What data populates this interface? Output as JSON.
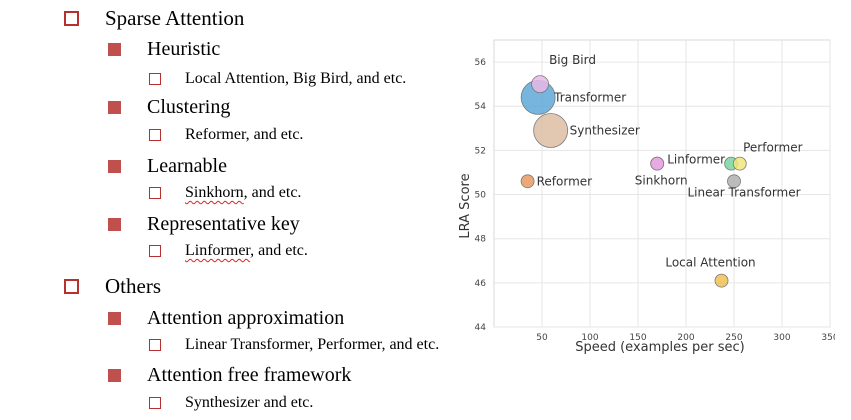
{
  "outline": [
    {
      "level": 1,
      "text": "Sparse Attention"
    },
    {
      "level": 2,
      "text": "Heuristic"
    },
    {
      "level": 3,
      "text": "Local Attention, Big Bird, and etc."
    },
    {
      "level": 2,
      "text": "Clustering"
    },
    {
      "level": 3,
      "text": "Reformer, and etc."
    },
    {
      "level": 2,
      "text": "Learnable"
    },
    {
      "level": 3,
      "text": "Sinkhorn, and etc.",
      "squiggle": "Sinkhorn"
    },
    {
      "level": 2,
      "text": "Representative key"
    },
    {
      "level": 3,
      "text": "Linformer, and etc.",
      "squiggle": "Linformer"
    },
    {
      "level": 1,
      "text": "Others"
    },
    {
      "level": 2,
      "text": "Attention approximation"
    },
    {
      "level": 3,
      "text": "Linear Transformer, Performer, and etc."
    },
    {
      "level": 2,
      "text": "Attention free framework"
    },
    {
      "level": 3,
      "text": "Synthesizer and etc."
    }
  ],
  "colors": {
    "bullet_accent": "#c0504d",
    "spell_underline": "#dd2222"
  },
  "chart_data": {
    "type": "scatter",
    "title": "",
    "xlabel": "Speed (examples per sec)",
    "ylabel": "LRA Score",
    "xlim": [
      0,
      350
    ],
    "ylim": [
      44,
      57
    ],
    "xticks": [
      50,
      100,
      150,
      200,
      250,
      300,
      350
    ],
    "yticks": [
      44,
      46,
      48,
      50,
      52,
      54,
      56
    ],
    "grid": true,
    "legend": "none",
    "points": [
      {
        "label": "Big Bird",
        "x": 48,
        "y": 55.0,
        "color": "#e8b9e6",
        "size": "small"
      },
      {
        "label": "Transformer",
        "x": 46,
        "y": 54.4,
        "color": "#5ea8d8",
        "size": "large"
      },
      {
        "label": "Synthesizer",
        "x": 59,
        "y": 52.9,
        "color": "#ddbda3",
        "size": "large"
      },
      {
        "label": "Linformer",
        "x": 170,
        "y": 51.4,
        "color": "#e6a8e2",
        "size": "small"
      },
      {
        "label": "Sinkhorn",
        "x": 170,
        "y": 51.4,
        "color": "#e6a8e2",
        "size": "small"
      },
      {
        "label": "Performer",
        "x": 247,
        "y": 51.4,
        "color": "#79d6a2",
        "size": "small"
      },
      {
        "label": "",
        "x": 256,
        "y": 51.4,
        "color": "#f2e57a",
        "size": "small"
      },
      {
        "label": "Reformer",
        "x": 35,
        "y": 50.6,
        "color": "#e89a62",
        "size": "small"
      },
      {
        "label": "Linear Transformer",
        "x": 250,
        "y": 50.6,
        "color": "#b0b0b0",
        "size": "small"
      },
      {
        "label": "Local Attention",
        "x": 237,
        "y": 46.1,
        "color": "#f0c154",
        "size": "small"
      }
    ]
  }
}
